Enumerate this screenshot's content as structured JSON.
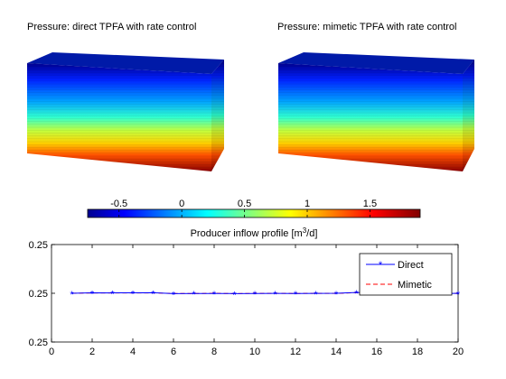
{
  "panels": [
    {
      "title": "Pressure: direct TPFA with rate control"
    },
    {
      "title": "Pressure: mimetic TPFA with rate control"
    }
  ],
  "colorbar": {
    "ticks": [
      -0.5,
      0,
      0.5,
      1,
      1.5
    ],
    "tick_labels": [
      "-0.5",
      "0",
      "0.5",
      "1",
      "1.5"
    ],
    "range": [
      -0.75,
      1.9
    ],
    "colormap": "jet"
  },
  "chart_data": {
    "type": "line",
    "title": "Producer inflow profile [m^3/d]",
    "title_main": "Producer inflow profile [m",
    "title_sup": "3",
    "title_end": "/d]",
    "xlabel": "",
    "ylabel": "",
    "xlim": [
      0,
      20
    ],
    "ylim": [
      0,
      10
    ],
    "grid": false,
    "legend_position": "top-right",
    "xticks": [
      0,
      2,
      4,
      6,
      8,
      10,
      12,
      14,
      16,
      18,
      20
    ],
    "xtick_labels": [
      "0",
      "2",
      "4",
      "6",
      "8",
      "10",
      "12",
      "14",
      "16",
      "18",
      "20"
    ],
    "yticks": [
      0,
      5,
      10
    ],
    "ytick_labels": [
      "0.25",
      "0.25",
      "0.25"
    ],
    "x": [
      1,
      2,
      3,
      4,
      5,
      6,
      7,
      8,
      9,
      10,
      11,
      12,
      13,
      14,
      15,
      16,
      17,
      18,
      19,
      20
    ],
    "series": [
      {
        "name": "Direct",
        "color": "#0000ff",
        "style": "solid",
        "marker": "asterisk",
        "values": [
          5.0,
          5.05,
          5.04,
          5.05,
          5.06,
          4.96,
          4.98,
          4.98,
          4.97,
          4.98,
          4.99,
          4.98,
          4.99,
          5.0,
          5.08,
          4.99,
          4.99,
          4.99,
          4.99,
          4.99
        ]
      },
      {
        "name": "Mimetic",
        "color": "#ff0000",
        "style": "dashed",
        "marker": "none",
        "values": [
          5.0,
          5.04,
          5.03,
          5.04,
          5.04,
          4.98,
          4.97,
          5.0,
          4.96,
          4.99,
          4.99,
          4.98,
          4.99,
          4.99,
          5.06,
          4.99,
          4.99,
          4.99,
          4.99,
          4.99
        ]
      }
    ]
  }
}
